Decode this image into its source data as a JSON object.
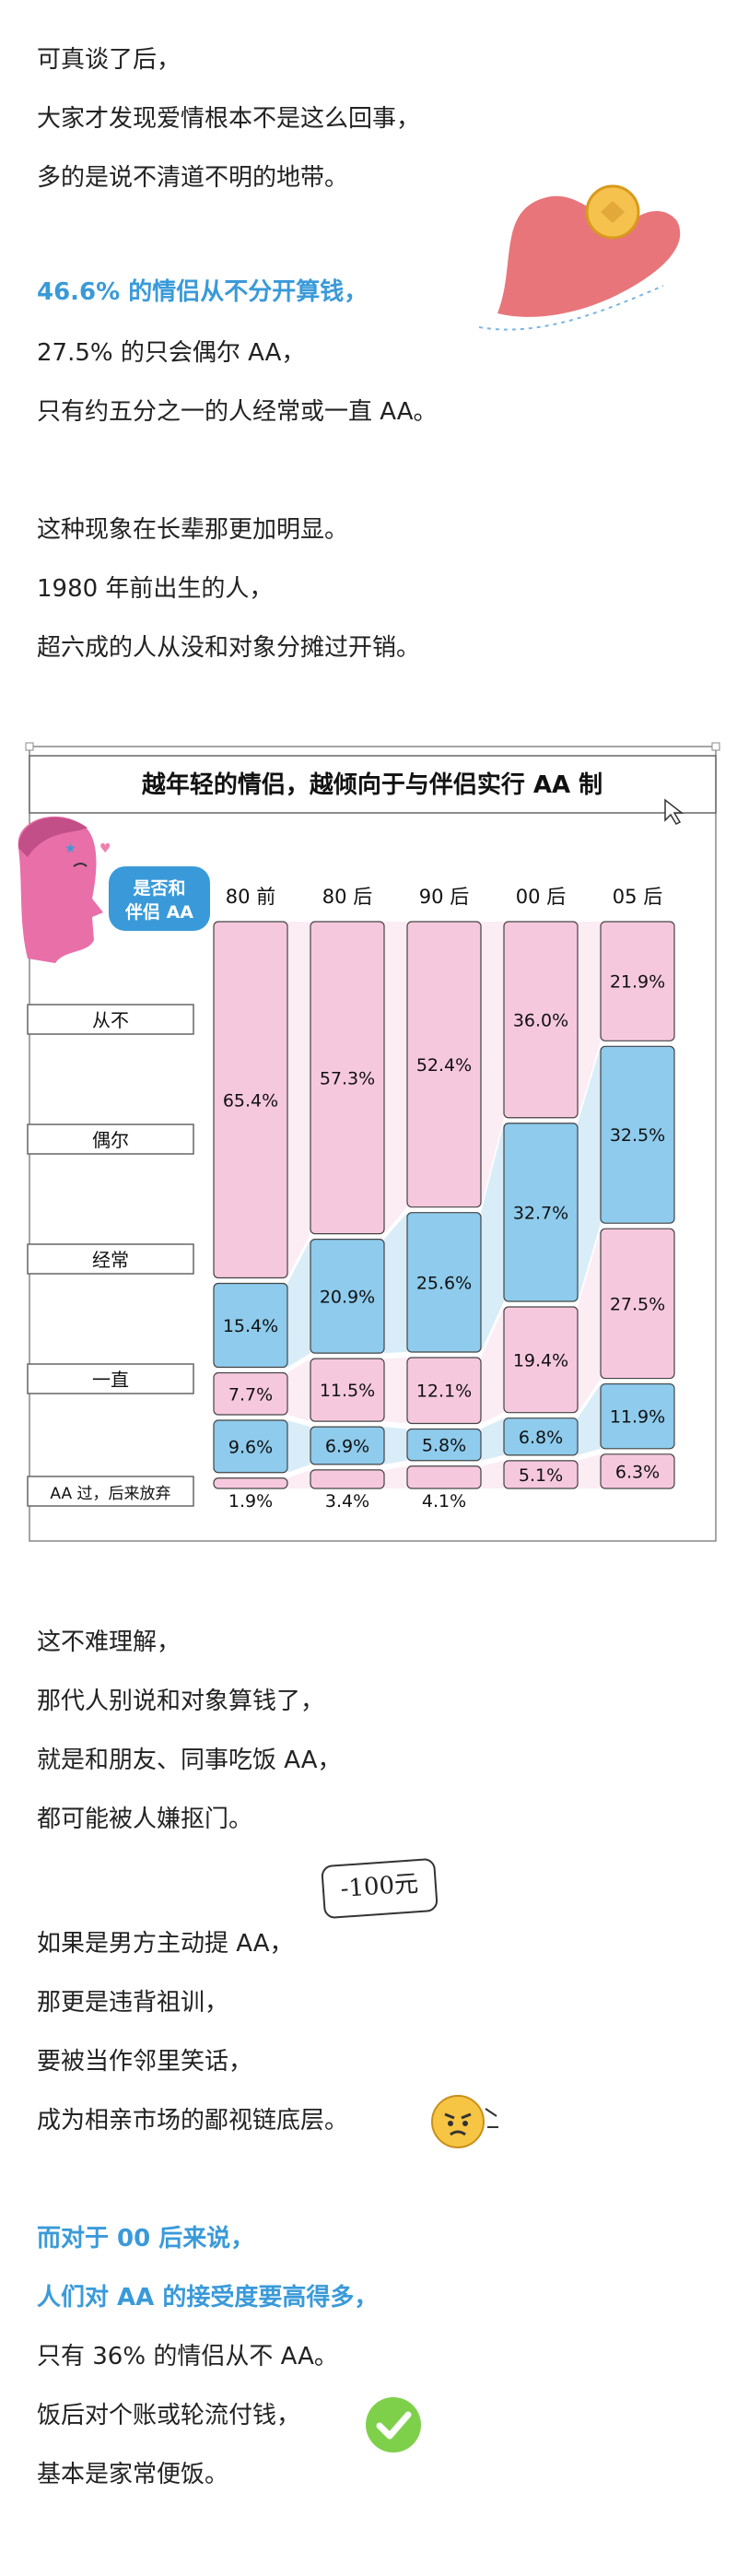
{
  "intro": {
    "lines": [
      "可真谈了后，",
      "大家才发现爱情根本不是这么回事，",
      "多的是说不清道不明的地带。"
    ]
  },
  "stats": {
    "highlight": "46.6% 的情侣从不分开算钱，",
    "line2": "27.5% 的只会偶尔 AA，",
    "line3": "只有约五分之一的人经常或一直 AA。"
  },
  "elders": {
    "lines": [
      "这种现象在长辈那更加明显。",
      "1980 年前出生的人，",
      "超六成的人从没和对象分摊过开销。"
    ]
  },
  "explain": {
    "lines": [
      "这不难理解，",
      "那代人别说和对象算钱了，",
      "就是和朋友、同事吃饭 AA，",
      "都可能被人嫌抠门。"
    ]
  },
  "sticker_text": "-100元",
  "male": {
    "lines": [
      "如果是男方主动提 AA，",
      "那更是违背祖训，",
      "要被当作邻里笑话，",
      "成为相亲市场的鄙视链底层。"
    ]
  },
  "gen00": {
    "highlight1": "而对于 00 后来说，",
    "highlight2": "人们对 AA 的接受度要高得多，",
    "lines": [
      "只有 36% 的情侣从不 AA。",
      "饭后对个账或轮流付钱，",
      "基本是家常便饭。"
    ]
  },
  "colors": {
    "accent_blue": "#3a9ad9",
    "pink": "#f6c8de",
    "blue": "#8ecbec",
    "heart": "#e8757a",
    "coin": "#f5c24e",
    "check": "#7ed04a"
  },
  "chart_data": {
    "type": "bar",
    "stacked": true,
    "title": "越年轻的情侣，越倾向于与伴侣实行 AA 制",
    "question": "是否和伴侣 AA",
    "categories": [
      "80 前",
      "80 后",
      "90 后",
      "00 后",
      "05 后"
    ],
    "series": [
      {
        "name": "从不",
        "values": [
          65.4,
          57.3,
          52.4,
          36.0,
          21.9
        ],
        "labels": [
          "65.4%",
          "57.3%",
          "52.4%",
          "36.0%",
          "21.9%"
        ]
      },
      {
        "name": "偶尔",
        "values": [
          15.4,
          20.9,
          25.6,
          32.7,
          32.5
        ],
        "labels": [
          "15.4%",
          "20.9%",
          "25.6%",
          "32.7%",
          "32.5%"
        ]
      },
      {
        "name": "经常",
        "values": [
          7.7,
          11.5,
          12.1,
          19.4,
          27.5
        ],
        "labels": [
          "7.7%",
          "11.5%",
          "12.1%",
          "19.4%",
          "27.5%"
        ]
      },
      {
        "name": "一直",
        "values": [
          9.6,
          6.9,
          5.8,
          6.8,
          11.9
        ],
        "labels": [
          "9.6%",
          "6.9%",
          "5.8%",
          "6.8%",
          "11.9%"
        ]
      },
      {
        "name": "AA 过，后来放弃",
        "values": [
          1.9,
          3.4,
          4.1,
          5.1,
          6.3
        ],
        "labels": [
          "1.9%",
          "3.4%",
          "4.1%",
          "5.1%",
          "6.3%"
        ]
      }
    ]
  }
}
